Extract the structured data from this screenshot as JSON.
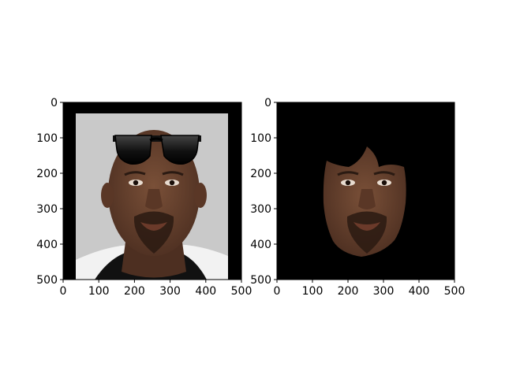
{
  "chart_data": [
    {
      "type": "image",
      "title": "",
      "xlabel": "",
      "ylabel": "",
      "xlim": [
        0,
        500
      ],
      "ylim": [
        500,
        0
      ],
      "xticks": [
        0,
        100,
        200,
        300,
        400,
        500
      ],
      "yticks": [
        0,
        100,
        200,
        300,
        400,
        500
      ],
      "grid": false,
      "image": {
        "background_color": "#000000",
        "photo_region": [
          35,
          500,
          35,
          465
        ],
        "photo_background_color": "#c9c9c9",
        "overlay_icon": "sunglasses-icon",
        "overlay_region": [
          95,
          175,
          145,
          390
        ]
      }
    },
    {
      "type": "image",
      "title": "",
      "xlabel": "",
      "ylabel": "",
      "xlim": [
        0,
        500
      ],
      "ylim": [
        500,
        0
      ],
      "xticks": [
        0,
        100,
        200,
        300,
        400,
        500
      ],
      "yticks": [
        0,
        100,
        200,
        300,
        400,
        500
      ],
      "grid": false,
      "image": {
        "background_color": "#000000",
        "mask_region": [
          125,
          435,
          135,
          365
        ]
      }
    }
  ],
  "colors": {
    "skin": "#6b4532",
    "skin_dark": "#4a2c1f",
    "beard": "#2a1a12",
    "jersey": "#f2f2f2",
    "collar": "#111111"
  }
}
